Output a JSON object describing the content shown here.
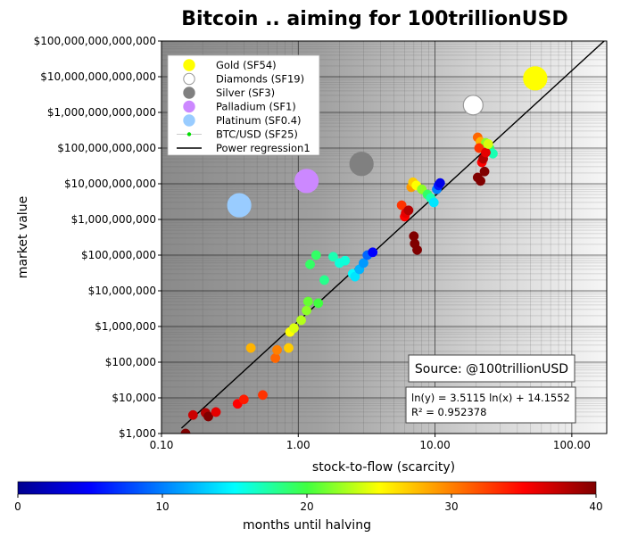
{
  "chart_data": {
    "type": "scatter",
    "title": "Bitcoin .. aiming for 100trillionUSD",
    "xlabel": "stock-to-flow (scarcity)",
    "ylabel": "market value",
    "x_scale": "log",
    "y_scale": "log",
    "xlim": [
      0.1,
      180
    ],
    "ylim": [
      1000,
      100000000000000
    ],
    "x_ticks": [
      {
        "value": 0.1,
        "label": "0.10"
      },
      {
        "value": 1,
        "label": "1.00"
      },
      {
        "value": 10,
        "label": "10.00"
      },
      {
        "value": 100,
        "label": "100.00"
      }
    ],
    "y_ticks": [
      {
        "value": 1000,
        "label": "$1,000"
      },
      {
        "value": 10000,
        "label": "$10,000"
      },
      {
        "value": 100000,
        "label": "$100,000"
      },
      {
        "value": 1000000,
        "label": "$1,000,000"
      },
      {
        "value": 10000000,
        "label": "$10,000,000"
      },
      {
        "value": 100000000,
        "label": "$100,000,000"
      },
      {
        "value": 1000000000,
        "label": "$1,000,000,000"
      },
      {
        "value": 10000000000,
        "label": "$10,000,000,000"
      },
      {
        "value": 100000000000,
        "label": "$100,000,000,000"
      },
      {
        "value": 1000000000000,
        "label": "$1,000,000,000,000"
      },
      {
        "value": 10000000000000,
        "label": "$10,000,000,000,000"
      },
      {
        "value": 100000000000000,
        "label": "$100,000,000,000,000"
      }
    ],
    "grid": true,
    "legend_position": "top-left",
    "legend": [
      {
        "label": "Gold (SF54)",
        "marker": "circle",
        "color": "#ffff00",
        "edge": "#ffff00"
      },
      {
        "label": "Diamonds (SF19)",
        "marker": "circle",
        "color": "#ffffff",
        "edge": "#999999"
      },
      {
        "label": "Silver (SF3)",
        "marker": "circle",
        "color": "#808080",
        "edge": "#808080"
      },
      {
        "label": "Palladium (SF1)",
        "marker": "circle",
        "color": "#cc88ff",
        "edge": "#cc88ff"
      },
      {
        "label": "Platinum (SF0.4)",
        "marker": "circle",
        "color": "#99ccff",
        "edge": "#99ccff"
      },
      {
        "label": "BTC/USD (SF25)",
        "marker": "dot-line",
        "color": "#00dd00",
        "edge": "#cccccc"
      },
      {
        "label": "Power regression1",
        "marker": "line",
        "color": "#000000",
        "edge": "#000000"
      }
    ],
    "commodities": [
      {
        "name": "Gold",
        "sf": 54,
        "value": 9000000000000,
        "color": "#ffff00",
        "edge": "#ffff00",
        "size": 13
      },
      {
        "name": "Diamonds",
        "sf": 19,
        "value": 1600000000000,
        "color": "#ffffff",
        "edge": "#999999",
        "size": 11
      },
      {
        "name": "Silver",
        "sf": 2.9,
        "value": 36000000000,
        "color": "#808080",
        "edge": "#808080",
        "size": 13
      },
      {
        "name": "Palladium",
        "sf": 1.15,
        "value": 12000000000,
        "color": "#cc88ff",
        "edge": "#cc88ff",
        "size": 13
      },
      {
        "name": "Platinum",
        "sf": 0.37,
        "value": 2500000000,
        "color": "#99ccff",
        "edge": "#99ccff",
        "size": 13
      }
    ],
    "btc_points_columns": [
      "stock_to_flow",
      "market_value_usd",
      "months_until_halving"
    ],
    "btc_points": [
      [
        0.15,
        1000,
        40
      ],
      [
        0.17,
        3300,
        37
      ],
      [
        0.21,
        3800,
        38
      ],
      [
        0.22,
        3000,
        40
      ],
      [
        0.25,
        4000,
        36
      ],
      [
        0.36,
        6800,
        35
      ],
      [
        0.4,
        9000,
        34
      ],
      [
        0.55,
        12000,
        33
      ],
      [
        0.68,
        130000,
        31
      ],
      [
        0.7,
        220000,
        30
      ],
      [
        0.45,
        250000,
        28
      ],
      [
        0.85,
        250000,
        27
      ],
      [
        0.87,
        700000,
        25
      ],
      [
        0.93,
        900000,
        24
      ],
      [
        1.05,
        1500000,
        23
      ],
      [
        1.15,
        2800000,
        22
      ],
      [
        1.18,
        5000000,
        21
      ],
      [
        1.4,
        4500000,
        20
      ],
      [
        1.22,
        55000000,
        19
      ],
      [
        1.55,
        20000000,
        18
      ],
      [
        1.35,
        100000000,
        19
      ],
      [
        1.8,
        90000000,
        17
      ],
      [
        2.0,
        60000000,
        16
      ],
      [
        2.2,
        70000000,
        16
      ],
      [
        2.5,
        30000000,
        15
      ],
      [
        2.6,
        25000000,
        14
      ],
      [
        2.8,
        40000000,
        12
      ],
      [
        3.0,
        60000000,
        11
      ],
      [
        3.2,
        100000000,
        9
      ],
      [
        3.5,
        120000000,
        5
      ],
      [
        5.7,
        2500000000,
        33
      ],
      [
        6.0,
        1200000000,
        35
      ],
      [
        6.1,
        1500000000,
        36
      ],
      [
        6.4,
        1800000000,
        38
      ],
      [
        7.0,
        340000000,
        40
      ],
      [
        7.1,
        210000000,
        40
      ],
      [
        7.4,
        140000000,
        40
      ],
      [
        6.7,
        8000000000,
        29
      ],
      [
        6.9,
        11000000000,
        27
      ],
      [
        7.3,
        9000000000,
        25
      ],
      [
        8.0,
        7000000000,
        22
      ],
      [
        8.8,
        5000000000,
        19
      ],
      [
        9.3,
        4000000000,
        17
      ],
      [
        9.8,
        3000000000,
        14
      ],
      [
        10.3,
        7000000000,
        10
      ],
      [
        10.6,
        9000000000,
        6
      ],
      [
        10.9,
        10500000000,
        4
      ],
      [
        20.5,
        200000000000,
        31
      ],
      [
        21.5,
        150000000000,
        28
      ],
      [
        23.5,
        140000000000,
        22
      ],
      [
        25.0,
        100000000000,
        19
      ],
      [
        26.5,
        70000000000,
        17
      ],
      [
        21.0,
        100000000000,
        33
      ],
      [
        22.0,
        40000000000,
        35
      ],
      [
        20.5,
        15000000000,
        40
      ],
      [
        21.5,
        12000000000,
        40
      ],
      [
        23.0,
        22000000000,
        40
      ],
      [
        22.5,
        50000000000,
        38
      ],
      [
        23.5,
        75000000000,
        36
      ],
      [
        24.5,
        130000000000,
        24
      ]
    ],
    "regression": {
      "label": "Power regression1",
      "a": 3.5115,
      "b": 14.1552
    },
    "annotations": {
      "source": "Source: @100trillionUSD",
      "equation": "ln(y) = 3.5115 ln(x) + 14.1552",
      "r2": "R² = 0.952378"
    },
    "colorbar": {
      "label": "months until halving",
      "range": [
        0,
        40
      ],
      "ticks": [
        0,
        10,
        20,
        30,
        40
      ],
      "colormap": "jet"
    }
  }
}
